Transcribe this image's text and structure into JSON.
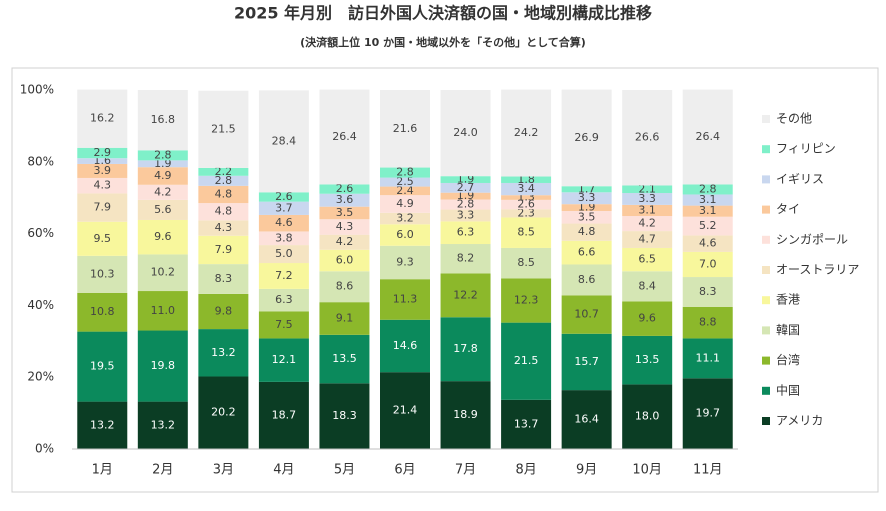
{
  "chart_data": {
    "type": "stacked_bar",
    "title": "2025 年月別　訪日外国人決済額の国・地域別構成比推移",
    "subtitle": "(決済額上位 10 か国・地域以外を「その他」として合算)",
    "categories": [
      "1月",
      "2月",
      "3月",
      "4月",
      "5月",
      "6月",
      "7月",
      "8月",
      "9月",
      "10月",
      "11月"
    ],
    "ylim": [
      0,
      100
    ],
    "yticks": [
      {
        "value": 0,
        "label": "0%"
      },
      {
        "value": 20,
        "label": "20%"
      },
      {
        "value": 40,
        "label": "40%"
      },
      {
        "value": 60,
        "label": "60%"
      },
      {
        "value": 80,
        "label": "80%"
      },
      {
        "value": 100,
        "label": "100%"
      }
    ],
    "grid": false,
    "legend": "right",
    "series": [
      {
        "name": "アメリカ",
        "color": "#0b3d24",
        "values": [
          13.2,
          13.2,
          20.2,
          18.7,
          18.3,
          21.4,
          18.9,
          13.7,
          16.4,
          18.0,
          19.7
        ],
        "value_labels": [
          "13.2",
          "13.2",
          "20.2",
          "18.7",
          "18.3",
          "21.4",
          "18.9",
          "13.7",
          "16.4",
          "18.0",
          "19.7"
        ]
      },
      {
        "name": "中国",
        "color": "#0b8a5c",
        "values": [
          19.5,
          19.8,
          13.2,
          12.1,
          13.5,
          14.6,
          17.8,
          21.5,
          15.7,
          13.5,
          11.1
        ],
        "value_labels": [
          "19.5",
          "19.8",
          "13.2",
          "12.1",
          "13.5",
          "14.6",
          "17.8",
          "21.5",
          "15.7",
          "13.5",
          "11.1"
        ]
      },
      {
        "name": "台湾",
        "color": "#8cb82b",
        "values": [
          10.8,
          11.0,
          9.8,
          7.5,
          9.1,
          11.3,
          12.2,
          12.3,
          10.7,
          9.6,
          8.8
        ],
        "value_labels": [
          "10.8",
          "11.0",
          "9.8",
          "7.5",
          "9.1",
          "11.3",
          "12.2",
          "12.3",
          "10.7",
          "9.6",
          "8.8"
        ]
      },
      {
        "name": "韓国",
        "color": "#d5e6b4",
        "values": [
          10.3,
          10.2,
          8.3,
          6.3,
          8.6,
          9.3,
          8.2,
          8.5,
          8.6,
          8.4,
          8.3
        ],
        "value_labels": [
          "10.3",
          "10.2",
          "8.3",
          "6.3",
          "8.6",
          "9.3",
          "8.2",
          "8.5",
          "8.6",
          "8.4",
          "8.3"
        ]
      },
      {
        "name": "香港",
        "color": "#f8f79c",
        "values": [
          9.5,
          9.6,
          7.9,
          7.2,
          6.0,
          6.0,
          6.3,
          8.5,
          6.6,
          6.5,
          7.0
        ],
        "value_labels": [
          "9.5",
          "9.6",
          "7.9",
          "7.2",
          "6.0",
          "6.0",
          "6.3",
          "8.5",
          "6.6",
          "6.5",
          "7.0"
        ]
      },
      {
        "name": "オーストラリア",
        "color": "#f5e4c2",
        "values": [
          7.9,
          5.6,
          4.3,
          5.0,
          4.2,
          3.2,
          3.3,
          2.3,
          4.8,
          4.7,
          4.6
        ],
        "value_labels": [
          "7.9",
          "5.6",
          "4.3",
          "5.0",
          "4.2",
          "3.2",
          "3.3",
          "2.3",
          "4.8",
          "4.7",
          "4.6"
        ]
      },
      {
        "name": "シンガポール",
        "color": "#fde1db",
        "values": [
          4.3,
          4.2,
          4.8,
          3.8,
          4.3,
          4.9,
          2.8,
          2.6,
          3.5,
          4.2,
          5.2
        ],
        "value_labels": [
          "4.3",
          "4.2",
          "4.8",
          "3.8",
          "4.3",
          "4.9",
          "2.8",
          "2.6",
          "3.5",
          "4.2",
          "5.2"
        ]
      },
      {
        "name": "タイ",
        "color": "#fbc99c",
        "values": [
          3.9,
          4.9,
          4.8,
          4.6,
          3.5,
          2.4,
          1.9,
          1.3,
          1.9,
          3.1,
          3.1
        ],
        "value_labels": [
          "3.9",
          "4.9",
          "4.8",
          "4.6",
          "3.5",
          "2.4",
          "1.9",
          "1.3",
          "1.9",
          "3.1",
          "3.1"
        ]
      },
      {
        "name": "イギリス",
        "color": "#c9d7ef",
        "values": [
          1.6,
          1.9,
          2.8,
          3.7,
          3.6,
          2.5,
          2.7,
          3.4,
          3.3,
          3.3,
          3.1
        ],
        "value_labels": [
          "1.6",
          "1.9",
          "2.8",
          "3.7",
          "3.6",
          "2.5",
          "2.7",
          "3.4",
          "3.3",
          "3.3",
          "3.1"
        ]
      },
      {
        "name": "フィリピン",
        "color": "#7ff0c9",
        "values": [
          2.9,
          2.8,
          2.2,
          2.6,
          2.6,
          2.8,
          1.9,
          1.8,
          1.7,
          2.1,
          2.8
        ],
        "value_labels": [
          "2.9",
          "2.8",
          "2.2",
          "2.6",
          "2.6",
          "2.8",
          "1.9",
          "1.8",
          "1.7",
          "2.1",
          "2.8"
        ]
      },
      {
        "name": "その他",
        "color": "#eeeeee",
        "values": [
          16.2,
          16.8,
          21.5,
          28.4,
          26.4,
          21.6,
          24.0,
          24.2,
          26.9,
          26.6,
          26.4
        ],
        "value_labels": [
          "16.2",
          "16.8",
          "21.5",
          "28.4",
          "26.4",
          "21.6",
          "24.0",
          "24.2",
          "26.9",
          "26.6",
          "26.4"
        ]
      }
    ]
  }
}
